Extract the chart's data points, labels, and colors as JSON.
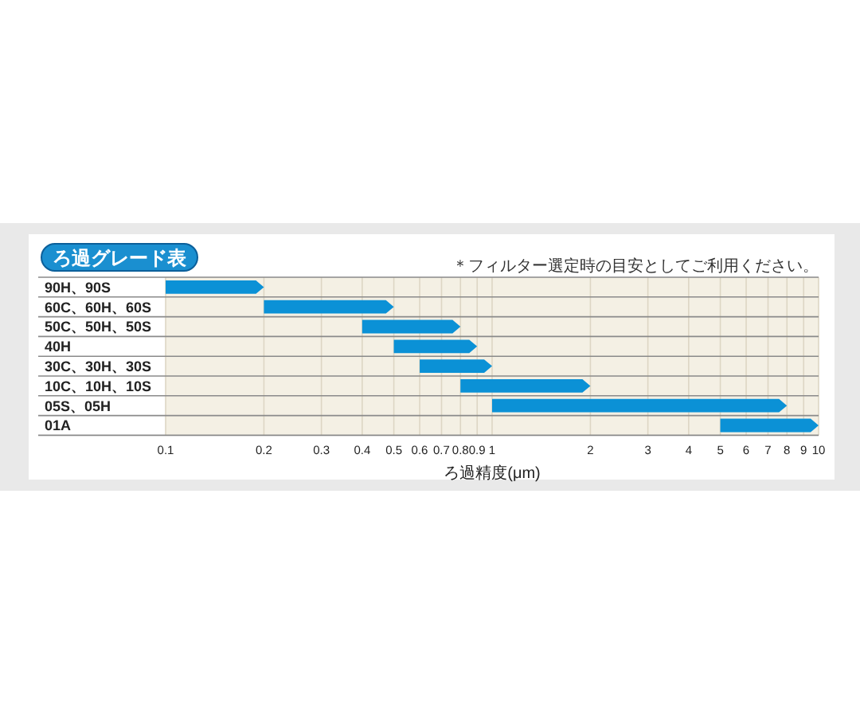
{
  "chart_data": {
    "type": "bar",
    "orientation": "horizontal",
    "title": "ろ過グレード表",
    "xlabel": "ろ過精度(μm)",
    "annotations": [
      "＊フィルター選定時の目安としてご利用ください。"
    ],
    "categories": [
      "90H、90S",
      "60C、60H、60S",
      "50C、50H、50S",
      "40H",
      "30C、30H、30S",
      "10C、10H、10S",
      "05S、05H",
      "01A"
    ],
    "base": [
      0.1,
      0.2,
      0.4,
      0.5,
      0.6,
      0.8,
      1,
      5
    ],
    "values": [
      0.1,
      0.3,
      0.4,
      0.4,
      0.4,
      1.2,
      7,
      5
    ],
    "color": "#0b91d6",
    "log": "x",
    "grid": "x",
    "xlim": [
      0.1,
      10
    ],
    "xticks": [
      0.1,
      0.2,
      0.3,
      0.4,
      0.5,
      0.6,
      0.7,
      0.8,
      0.9,
      1,
      2,
      3,
      4,
      5,
      6,
      7,
      8,
      9,
      10
    ]
  }
}
